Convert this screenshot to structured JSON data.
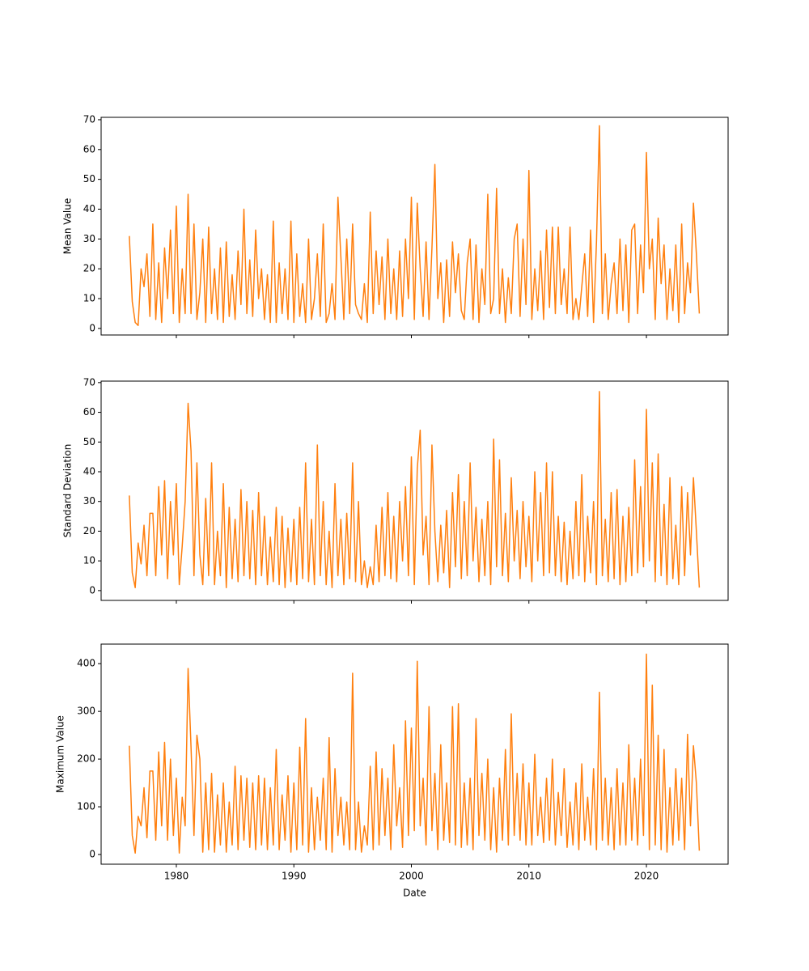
{
  "chart_data": [
    {
      "type": "line",
      "ylabel": "Mean Value",
      "color": "#ff7f0e",
      "xlim": [
        1973.6,
        2026.95
      ],
      "ylim": [
        -2.2,
        70.8
      ],
      "yticks": [
        0,
        10,
        20,
        30,
        40,
        50,
        60,
        70
      ],
      "x": [
        1976,
        1976.25,
        1976.5,
        1976.75,
        1977,
        1977.25,
        1977.5,
        1977.75,
        1978,
        1978.25,
        1978.5,
        1978.75,
        1979,
        1979.25,
        1979.5,
        1979.75,
        1980,
        1980.25,
        1980.5,
        1980.75,
        1981,
        1981.25,
        1981.5,
        1981.75,
        1982,
        1982.25,
        1982.5,
        1982.75,
        1983,
        1983.25,
        1983.5,
        1983.75,
        1984,
        1984.25,
        1984.5,
        1984.75,
        1985,
        1985.25,
        1985.5,
        1985.75,
        1986,
        1986.25,
        1986.5,
        1986.75,
        1987,
        1987.25,
        1987.5,
        1987.75,
        1988,
        1988.25,
        1988.5,
        1988.75,
        1989,
        1989.25,
        1989.5,
        1989.75,
        1990,
        1990.25,
        1990.5,
        1990.75,
        1991,
        1991.25,
        1991.5,
        1991.75,
        1992,
        1992.25,
        1992.5,
        1992.75,
        1993,
        1993.25,
        1993.5,
        1993.75,
        1994,
        1994.25,
        1994.5,
        1994.75,
        1995,
        1995.25,
        1995.5,
        1995.75,
        1996,
        1996.25,
        1996.5,
        1996.75,
        1997,
        1997.25,
        1997.5,
        1997.75,
        1998,
        1998.25,
        1998.5,
        1998.75,
        1999,
        1999.25,
        1999.5,
        1999.75,
        2000,
        2000.25,
        2000.5,
        2000.75,
        2001,
        2001.25,
        2001.5,
        2001.75,
        2002,
        2002.25,
        2002.5,
        2002.75,
        2003,
        2003.25,
        2003.5,
        2003.75,
        2004,
        2004.25,
        2004.5,
        2004.75,
        2005,
        2005.25,
        2005.5,
        2005.75,
        2006,
        2006.25,
        2006.5,
        2006.75,
        2007,
        2007.25,
        2007.5,
        2007.75,
        2008,
        2008.25,
        2008.5,
        2008.75,
        2009,
        2009.25,
        2009.5,
        2009.75,
        2010,
        2010.25,
        2010.5,
        2010.75,
        2011,
        2011.25,
        2011.5,
        2011.75,
        2012,
        2012.25,
        2012.5,
        2012.75,
        2013,
        2013.25,
        2013.5,
        2013.75,
        2014,
        2014.25,
        2014.5,
        2014.75,
        2015,
        2015.25,
        2015.5,
        2015.75,
        2016,
        2016.25,
        2016.5,
        2016.75,
        2017,
        2017.25,
        2017.5,
        2017.75,
        2018,
        2018.25,
        2018.5,
        2018.75,
        2019,
        2019.25,
        2019.5,
        2019.75,
        2020,
        2020.25,
        2020.5,
        2020.75,
        2021,
        2021.25,
        2021.5,
        2021.75,
        2022,
        2022.25,
        2022.5,
        2022.75,
        2023,
        2023.25,
        2023.5,
        2023.75,
        2024,
        2024.25,
        2024.5
      ],
      "values": [
        31,
        9,
        2,
        1,
        20,
        14,
        25,
        4,
        35,
        3,
        22,
        2,
        27,
        10,
        33,
        5,
        41,
        2,
        20,
        5,
        45,
        5,
        35,
        3,
        12,
        30,
        2,
        34,
        5,
        20,
        3,
        27,
        2,
        29,
        4,
        18,
        3,
        26,
        8,
        40,
        5,
        23,
        4,
        33,
        10,
        20,
        3,
        18,
        2,
        36,
        2,
        22,
        5,
        20,
        3,
        36,
        2,
        25,
        4,
        15,
        2,
        30,
        3,
        10,
        25,
        4,
        35,
        2,
        5,
        15,
        3,
        44,
        24,
        3,
        30,
        5,
        35,
        8,
        5,
        3,
        15,
        2,
        39,
        5,
        26,
        8,
        24,
        3,
        30,
        5,
        20,
        3,
        26,
        4,
        30,
        10,
        44,
        3,
        42,
        20,
        4,
        29,
        3,
        27,
        55,
        10,
        22,
        2,
        23,
        4,
        29,
        12,
        25,
        6,
        3,
        22,
        30,
        3,
        28,
        2,
        20,
        8,
        45,
        5,
        10,
        47,
        5,
        20,
        2,
        17,
        5,
        30,
        35,
        4,
        30,
        8,
        53,
        3,
        20,
        6,
        26,
        3,
        33,
        7,
        34,
        5,
        34,
        8,
        20,
        5,
        34,
        3,
        10,
        3,
        14,
        25,
        4,
        33,
        2,
        29,
        68,
        5,
        25,
        3,
        15,
        22,
        5,
        30,
        6,
        28,
        2,
        33,
        35,
        5,
        28,
        12,
        59,
        20,
        30,
        3,
        37,
        15,
        28,
        3,
        20,
        6,
        28,
        2,
        35,
        5,
        22,
        12,
        42,
        25,
        5
      ]
    },
    {
      "type": "line",
      "ylabel": "Standard Deviation",
      "color": "#ff7f0e",
      "xlim": [
        1973.6,
        2026.95
      ],
      "ylim": [
        -3.3,
        70.5
      ],
      "yticks": [
        0,
        10,
        20,
        30,
        40,
        50,
        60,
        70
      ],
      "x": [
        1976,
        1976.25,
        1976.5,
        1976.75,
        1977,
        1977.25,
        1977.5,
        1977.75,
        1978,
        1978.25,
        1978.5,
        1978.75,
        1979,
        1979.25,
        1979.5,
        1979.75,
        1980,
        1980.25,
        1980.5,
        1980.75,
        1981,
        1981.25,
        1981.5,
        1981.75,
        1982,
        1982.25,
        1982.5,
        1982.75,
        1983,
        1983.25,
        1983.5,
        1983.75,
        1984,
        1984.25,
        1984.5,
        1984.75,
        1985,
        1985.25,
        1985.5,
        1985.75,
        1986,
        1986.25,
        1986.5,
        1986.75,
        1987,
        1987.25,
        1987.5,
        1987.75,
        1988,
        1988.25,
        1988.5,
        1988.75,
        1989,
        1989.25,
        1989.5,
        1989.75,
        1990,
        1990.25,
        1990.5,
        1990.75,
        1991,
        1991.25,
        1991.5,
        1991.75,
        1992,
        1992.25,
        1992.5,
        1992.75,
        1993,
        1993.25,
        1993.5,
        1993.75,
        1994,
        1994.25,
        1994.5,
        1994.75,
        1995,
        1995.25,
        1995.5,
        1995.75,
        1996,
        1996.25,
        1996.5,
        1996.75,
        1997,
        1997.25,
        1997.5,
        1997.75,
        1998,
        1998.25,
        1998.5,
        1998.75,
        1999,
        1999.25,
        1999.5,
        1999.75,
        2000,
        2000.25,
        2000.5,
        2000.75,
        2001,
        2001.25,
        2001.5,
        2001.75,
        2002,
        2002.25,
        2002.5,
        2002.75,
        2003,
        2003.25,
        2003.5,
        2003.75,
        2004,
        2004.25,
        2004.5,
        2004.75,
        2005,
        2005.25,
        2005.5,
        2005.75,
        2006,
        2006.25,
        2006.5,
        2006.75,
        2007,
        2007.25,
        2007.5,
        2007.75,
        2008,
        2008.25,
        2008.5,
        2008.75,
        2009,
        2009.25,
        2009.5,
        2009.75,
        2010,
        2010.25,
        2010.5,
        2010.75,
        2011,
        2011.25,
        2011.5,
        2011.75,
        2012,
        2012.25,
        2012.5,
        2012.75,
        2013,
        2013.25,
        2013.5,
        2013.75,
        2014,
        2014.25,
        2014.5,
        2014.75,
        2015,
        2015.25,
        2015.5,
        2015.75,
        2016,
        2016.25,
        2016.5,
        2016.75,
        2017,
        2017.25,
        2017.5,
        2017.75,
        2018,
        2018.25,
        2018.5,
        2018.75,
        2019,
        2019.25,
        2019.5,
        2019.75,
        2020,
        2020.25,
        2020.5,
        2020.75,
        2021,
        2021.25,
        2021.5,
        2021.75,
        2022,
        2022.25,
        2022.5,
        2022.75,
        2023,
        2023.25,
        2023.5,
        2023.75,
        2024,
        2024.25,
        2024.5
      ],
      "values": [
        32,
        6,
        1,
        16,
        9,
        22,
        5,
        26,
        26,
        5,
        35,
        12,
        37,
        4,
        30,
        12,
        36,
        2,
        15,
        30,
        63,
        47,
        5,
        43,
        12,
        2,
        31,
        5,
        43,
        2,
        20,
        5,
        36,
        1,
        28,
        4,
        24,
        3,
        34,
        5,
        30,
        4,
        27,
        2,
        33,
        5,
        25,
        2,
        18,
        3,
        28,
        2,
        25,
        1,
        21,
        3,
        24,
        2,
        28,
        4,
        43,
        3,
        24,
        2,
        49,
        5,
        30,
        2,
        20,
        1,
        36,
        5,
        24,
        2,
        26,
        4,
        43,
        3,
        30,
        2,
        10,
        1,
        8,
        2,
        22,
        3,
        28,
        5,
        33,
        4,
        25,
        3,
        30,
        10,
        35,
        5,
        45,
        2,
        41,
        54,
        12,
        25,
        2,
        49,
        20,
        3,
        22,
        6,
        27,
        1,
        33,
        8,
        39,
        4,
        30,
        5,
        43,
        10,
        28,
        3,
        24,
        5,
        30,
        2,
        51,
        8,
        44,
        5,
        26,
        3,
        38,
        10,
        27,
        4,
        30,
        8,
        25,
        3,
        40,
        10,
        33,
        5,
        43,
        6,
        40,
        5,
        25,
        3,
        23,
        2,
        20,
        4,
        30,
        5,
        39,
        3,
        25,
        6,
        30,
        2,
        67,
        5,
        24,
        3,
        33,
        4,
        34,
        2,
        25,
        3,
        28,
        5,
        44,
        6,
        35,
        8,
        61,
        10,
        43,
        3,
        46,
        5,
        29,
        2,
        38,
        4,
        22,
        2,
        35,
        5,
        33,
        12,
        38,
        20,
        1
      ]
    },
    {
      "type": "line",
      "ylabel": "Maximum Value",
      "xlabel": "Date",
      "color": "#ff7f0e",
      "xlim": [
        1973.6,
        2026.95
      ],
      "ylim": [
        -20.3,
        441
      ],
      "yticks": [
        0,
        100,
        200,
        300,
        400
      ],
      "xticks": [
        1980,
        1990,
        2000,
        2010,
        2020
      ],
      "x": [
        1976,
        1976.25,
        1976.5,
        1976.75,
        1977,
        1977.25,
        1977.5,
        1977.75,
        1978,
        1978.25,
        1978.5,
        1978.75,
        1979,
        1979.25,
        1979.5,
        1979.75,
        1980,
        1980.25,
        1980.5,
        1980.75,
        1981,
        1981.25,
        1981.5,
        1981.75,
        1982,
        1982.25,
        1982.5,
        1982.75,
        1983,
        1983.25,
        1983.5,
        1983.75,
        1984,
        1984.25,
        1984.5,
        1984.75,
        1985,
        1985.25,
        1985.5,
        1985.75,
        1986,
        1986.25,
        1986.5,
        1986.75,
        1987,
        1987.25,
        1987.5,
        1987.75,
        1988,
        1988.25,
        1988.5,
        1988.75,
        1989,
        1989.25,
        1989.5,
        1989.75,
        1990,
        1990.25,
        1990.5,
        1990.75,
        1991,
        1991.25,
        1991.5,
        1991.75,
        1992,
        1992.25,
        1992.5,
        1992.75,
        1993,
        1993.25,
        1993.5,
        1993.75,
        1994,
        1994.25,
        1994.5,
        1994.75,
        1995,
        1995.25,
        1995.5,
        1995.75,
        1996,
        1996.25,
        1996.5,
        1996.75,
        1997,
        1997.25,
        1997.5,
        1997.75,
        1998,
        1998.25,
        1998.5,
        1998.75,
        1999,
        1999.25,
        1999.5,
        1999.75,
        2000,
        2000.25,
        2000.5,
        2000.75,
        2001,
        2001.25,
        2001.5,
        2001.75,
        2002,
        2002.25,
        2002.5,
        2002.75,
        2003,
        2003.25,
        2003.5,
        2003.75,
        2004,
        2004.25,
        2004.5,
        2004.75,
        2005,
        2005.25,
        2005.5,
        2005.75,
        2006,
        2006.25,
        2006.5,
        2006.75,
        2007,
        2007.25,
        2007.5,
        2007.75,
        2008,
        2008.25,
        2008.5,
        2008.75,
        2009,
        2009.25,
        2009.5,
        2009.75,
        2010,
        2010.25,
        2010.5,
        2010.75,
        2011,
        2011.25,
        2011.5,
        2011.75,
        2012,
        2012.25,
        2012.5,
        2012.75,
        2013,
        2013.25,
        2013.5,
        2013.75,
        2014,
        2014.25,
        2014.5,
        2014.75,
        2015,
        2015.25,
        2015.5,
        2015.75,
        2016,
        2016.25,
        2016.5,
        2016.75,
        2017,
        2017.25,
        2017.5,
        2017.75,
        2018,
        2018.25,
        2018.5,
        2018.75,
        2019,
        2019.25,
        2019.5,
        2019.75,
        2020,
        2020.25,
        2020.5,
        2020.75,
        2021,
        2021.25,
        2021.5,
        2021.75,
        2022,
        2022.25,
        2022.5,
        2022.75,
        2023,
        2023.25,
        2023.5,
        2023.75,
        2024,
        2024.25,
        2024.5
      ],
      "values": [
        228,
        40,
        3,
        80,
        60,
        140,
        35,
        175,
        175,
        30,
        215,
        60,
        235,
        30,
        200,
        40,
        160,
        3,
        120,
        60,
        390,
        225,
        40,
        250,
        200,
        5,
        150,
        10,
        170,
        5,
        125,
        20,
        150,
        5,
        110,
        20,
        185,
        10,
        165,
        30,
        160,
        15,
        150,
        10,
        165,
        20,
        160,
        10,
        140,
        20,
        220,
        10,
        125,
        30,
        165,
        5,
        150,
        10,
        225,
        20,
        285,
        5,
        140,
        10,
        120,
        30,
        160,
        10,
        245,
        5,
        180,
        40,
        120,
        20,
        110,
        10,
        380,
        10,
        110,
        5,
        60,
        20,
        185,
        10,
        215,
        20,
        180,
        40,
        160,
        10,
        230,
        60,
        140,
        15,
        280,
        40,
        265,
        50,
        405,
        60,
        160,
        20,
        310,
        50,
        170,
        10,
        230,
        30,
        150,
        25,
        310,
        20,
        316,
        15,
        150,
        20,
        160,
        10,
        285,
        40,
        170,
        30,
        200,
        10,
        140,
        5,
        160,
        30,
        220,
        20,
        295,
        40,
        170,
        30,
        190,
        20,
        150,
        20,
        210,
        40,
        120,
        25,
        160,
        30,
        200,
        20,
        130,
        40,
        180,
        15,
        110,
        20,
        150,
        10,
        190,
        30,
        120,
        20,
        180,
        10,
        340,
        30,
        160,
        20,
        140,
        10,
        180,
        20,
        150,
        20,
        230,
        30,
        160,
        20,
        200,
        40,
        420,
        10,
        355,
        20,
        250,
        10,
        220,
        5,
        140,
        20,
        180,
        30,
        160,
        10,
        252,
        60,
        228,
        150,
        8
      ]
    }
  ]
}
